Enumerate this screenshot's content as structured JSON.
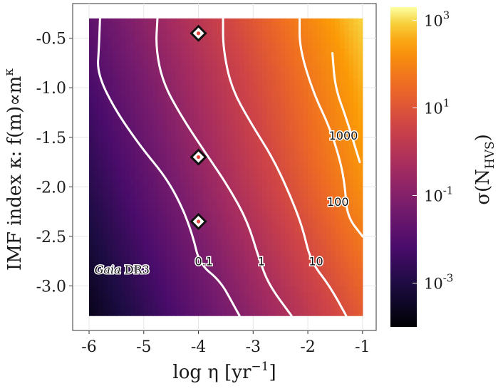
{
  "chart_data": {
    "type": "heatmap",
    "xlabel": "log η [yr⁻¹]",
    "xlabel_parts": {
      "main": "log η [yr",
      "sup": "−1",
      "tail": "]"
    },
    "ylabel": "IMF index κ: f(m)∝m^κ",
    "ylabel_parts": {
      "main": "IMF index κ: f(m)∝m",
      "sup": "κ"
    },
    "colorbar_label": "σ(N_HVS)",
    "colorbar_label_parts": {
      "main": "σ(N",
      "sub": "HVS",
      "tail": ")"
    },
    "xlim": [
      -6.3,
      -0.75
    ],
    "ylim": [
      -3.45,
      -0.15
    ],
    "x_ticks": [
      -6,
      -5,
      -4,
      -3,
      -2,
      -1
    ],
    "x_tick_labels": [
      "-6",
      "-5",
      "-4",
      "-3",
      "-2",
      "-1"
    ],
    "y_ticks": [
      -0.5,
      -1.0,
      -1.5,
      -2.0,
      -2.5,
      -3.0
    ],
    "y_tick_labels": [
      "-0.5",
      "-1.0",
      "-1.5",
      "-2.0",
      "-2.5",
      "-3.0"
    ],
    "heatmap_x_range": [
      -6.0,
      -1.0
    ],
    "heatmap_y_range": [
      -3.3,
      -0.3
    ],
    "colorscale": "inferno",
    "color_log_range": [
      -4,
      3.3
    ],
    "colorbar_ticks": [
      {
        "base": "10",
        "exp": "3",
        "log": 3
      },
      {
        "base": "10",
        "exp": "1",
        "log": 1
      },
      {
        "base": "10",
        "exp": "-1",
        "log": -1
      },
      {
        "base": "10",
        "exp": "-3",
        "log": -3
      }
    ],
    "contours": [
      {
        "label": "0.1",
        "points": [
          [
            -5.8,
            -0.3
          ],
          [
            -5.82,
            -0.6
          ],
          [
            -5.85,
            -0.85
          ],
          [
            -5.55,
            -1.2
          ],
          [
            -5.05,
            -1.6
          ],
          [
            -4.6,
            -1.9
          ],
          [
            -4.3,
            -2.2
          ],
          [
            -4.1,
            -2.5
          ],
          [
            -3.98,
            -2.78
          ],
          [
            -3.6,
            -2.95
          ],
          [
            -3.35,
            -3.2
          ],
          [
            -3.25,
            -3.3
          ]
        ],
        "label_pos": [
          -3.9,
          -2.75
        ]
      },
      {
        "label": "1",
        "points": [
          [
            -4.75,
            -0.3
          ],
          [
            -4.78,
            -0.6
          ],
          [
            -4.65,
            -0.95
          ],
          [
            -4.3,
            -1.3
          ],
          [
            -3.88,
            -1.65
          ],
          [
            -3.45,
            -2.0
          ],
          [
            -3.1,
            -2.35
          ],
          [
            -2.88,
            -2.75
          ],
          [
            -2.7,
            -3.0
          ],
          [
            -2.3,
            -3.3
          ]
        ],
        "label_pos": [
          -2.85,
          -2.75
        ]
      },
      {
        "label": "10",
        "points": [
          [
            -3.55,
            -0.3
          ],
          [
            -3.55,
            -0.6
          ],
          [
            -3.4,
            -1.0
          ],
          [
            -3.05,
            -1.35
          ],
          [
            -2.65,
            -1.7
          ],
          [
            -2.35,
            -2.05
          ],
          [
            -2.1,
            -2.4
          ],
          [
            -1.95,
            -2.75
          ],
          [
            -1.6,
            -3.0
          ],
          [
            -1.3,
            -3.3
          ]
        ],
        "label_pos": [
          -1.85,
          -2.75
        ]
      },
      {
        "label": "100",
        "points": [
          [
            -2.15,
            -0.3
          ],
          [
            -2.15,
            -0.6
          ],
          [
            -1.9,
            -1.05
          ],
          [
            -1.6,
            -1.4
          ],
          [
            -1.4,
            -1.75
          ],
          [
            -1.32,
            -2.0
          ],
          [
            -1.28,
            -2.3
          ],
          [
            -1.0,
            -2.5
          ]
        ],
        "label_pos": [
          -1.45,
          -2.15
        ]
      },
      {
        "label": "1000",
        "points": [
          [
            -1.55,
            -0.65
          ],
          [
            -1.5,
            -1.0
          ],
          [
            -1.3,
            -1.3
          ],
          [
            -1.05,
            -1.75
          ]
        ],
        "label_pos": [
          -1.35,
          -1.48
        ]
      }
    ],
    "markers": [
      {
        "x": -4.0,
        "y": -0.45
      },
      {
        "x": -4.0,
        "y": -1.7
      },
      {
        "x": -4.0,
        "y": -2.35
      }
    ],
    "annotation": {
      "italic": "Gaia",
      "rest": " DR3",
      "x": -5.9,
      "y": -2.83
    },
    "grid": true,
    "legend": "none"
  }
}
